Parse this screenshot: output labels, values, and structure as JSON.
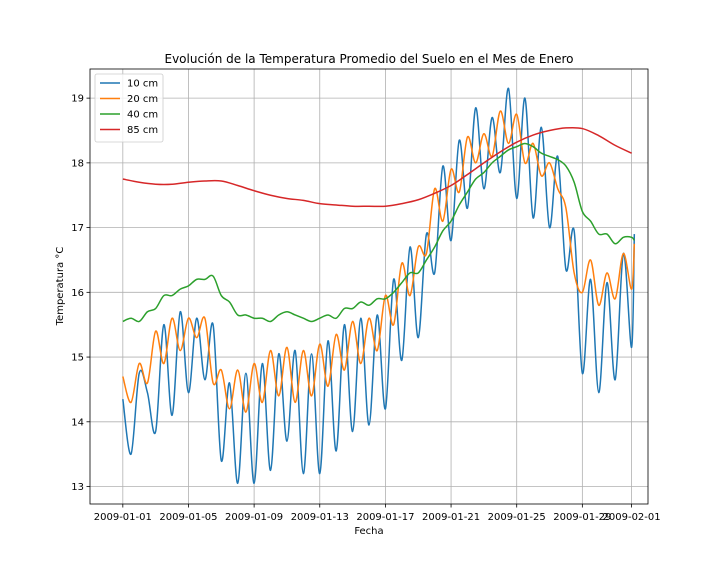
{
  "chart_data": {
    "type": "line",
    "title": "Evolución de la Temperatura Promedio del Suelo en el Mes de Enero",
    "xlabel": "Fecha",
    "ylabel": "Temperatura °C",
    "x_type": "date",
    "xlim": [
      "2008-12-30",
      "2009-02-02"
    ],
    "ylim": [
      12.73,
      19.45
    ],
    "xticks": [
      "2009-01-01",
      "2009-01-05",
      "2009-01-09",
      "2009-01-13",
      "2009-01-17",
      "2009-01-21",
      "2009-01-25",
      "2009-01-29",
      "2009-02-01"
    ],
    "yticks": [
      13,
      14,
      15,
      16,
      17,
      18,
      19
    ],
    "grid": true,
    "legend_position": "top-left",
    "series": [
      {
        "name": "10 cm",
        "color": "#1f77b4",
        "points": [
          [
            "2009-01-01",
            14.35
          ],
          [
            "2009-01-01T12:00",
            13.5
          ],
          [
            "2009-01-02",
            14.75
          ],
          [
            "2009-01-02T12:00",
            14.45
          ],
          [
            "2009-01-03",
            13.85
          ],
          [
            "2009-01-03T12:00",
            15.5
          ],
          [
            "2009-01-04",
            14.1
          ],
          [
            "2009-01-04T12:00",
            15.7
          ],
          [
            "2009-01-05",
            14.45
          ],
          [
            "2009-01-05T12:00",
            15.6
          ],
          [
            "2009-01-06",
            14.65
          ],
          [
            "2009-01-06T12:00",
            15.5
          ],
          [
            "2009-01-07",
            13.4
          ],
          [
            "2009-01-07T12:00",
            14.6
          ],
          [
            "2009-01-08",
            13.05
          ],
          [
            "2009-01-08T12:00",
            14.75
          ],
          [
            "2009-01-09",
            13.05
          ],
          [
            "2009-01-09T12:00",
            14.9
          ],
          [
            "2009-01-10",
            13.25
          ],
          [
            "2009-01-10T12:00",
            15.05
          ],
          [
            "2009-01-11",
            13.7
          ],
          [
            "2009-01-11T12:00",
            15.1
          ],
          [
            "2009-01-12",
            13.2
          ],
          [
            "2009-01-12T12:00",
            15.05
          ],
          [
            "2009-01-13",
            13.2
          ],
          [
            "2009-01-13T12:00",
            15.25
          ],
          [
            "2009-01-14",
            13.55
          ],
          [
            "2009-01-14T12:00",
            15.5
          ],
          [
            "2009-01-15",
            13.85
          ],
          [
            "2009-01-15T12:00",
            15.6
          ],
          [
            "2009-01-16",
            13.95
          ],
          [
            "2009-01-16T12:00",
            15.65
          ],
          [
            "2009-01-17",
            14.2
          ],
          [
            "2009-01-17T12:00",
            16.2
          ],
          [
            "2009-01-18",
            14.95
          ],
          [
            "2009-01-18T12:00",
            16.7
          ],
          [
            "2009-01-19",
            15.3
          ],
          [
            "2009-01-19T12:00",
            16.9
          ],
          [
            "2009-01-20",
            16.3
          ],
          [
            "2009-01-20T12:00",
            17.95
          ],
          [
            "2009-01-21",
            16.8
          ],
          [
            "2009-01-21T12:00",
            18.35
          ],
          [
            "2009-01-22",
            17.3
          ],
          [
            "2009-01-22T12:00",
            18.85
          ],
          [
            "2009-01-23",
            17.6
          ],
          [
            "2009-01-23T12:00",
            18.7
          ],
          [
            "2009-01-24",
            17.85
          ],
          [
            "2009-01-24T12:00",
            19.15
          ],
          [
            "2009-01-25",
            17.45
          ],
          [
            "2009-01-25T12:00",
            19.0
          ],
          [
            "2009-01-26",
            17.15
          ],
          [
            "2009-01-26T12:00",
            18.55
          ],
          [
            "2009-01-27",
            17.0
          ],
          [
            "2009-01-27T12:00",
            18.1
          ],
          [
            "2009-01-28",
            16.35
          ],
          [
            "2009-01-28T12:00",
            16.95
          ],
          [
            "2009-01-29",
            14.75
          ],
          [
            "2009-01-29T12:00",
            16.2
          ],
          [
            "2009-01-30",
            14.45
          ],
          [
            "2009-01-30T12:00",
            16.15
          ],
          [
            "2009-01-31",
            14.65
          ],
          [
            "2009-01-31T12:00",
            16.6
          ],
          [
            "2009-02-01",
            15.15
          ],
          [
            "2009-02-01T04:00",
            16.9
          ]
        ]
      },
      {
        "name": "20 cm",
        "color": "#ff7f0e",
        "points": [
          [
            "2009-01-01",
            14.7
          ],
          [
            "2009-01-01T12:00",
            14.3
          ],
          [
            "2009-01-02",
            14.9
          ],
          [
            "2009-01-02T12:00",
            14.6
          ],
          [
            "2009-01-03",
            15.4
          ],
          [
            "2009-01-03T12:00",
            14.9
          ],
          [
            "2009-01-04",
            15.6
          ],
          [
            "2009-01-04T12:00",
            15.1
          ],
          [
            "2009-01-05",
            15.6
          ],
          [
            "2009-01-05T12:00",
            15.3
          ],
          [
            "2009-01-06",
            15.6
          ],
          [
            "2009-01-06T12:00",
            14.6
          ],
          [
            "2009-01-07",
            14.8
          ],
          [
            "2009-01-07T12:00",
            14.2
          ],
          [
            "2009-01-08",
            14.8
          ],
          [
            "2009-01-08T12:00",
            14.15
          ],
          [
            "2009-01-09",
            14.9
          ],
          [
            "2009-01-09T12:00",
            14.3
          ],
          [
            "2009-01-10",
            15.1
          ],
          [
            "2009-01-10T12:00",
            14.4
          ],
          [
            "2009-01-11",
            15.15
          ],
          [
            "2009-01-11T12:00",
            14.3
          ],
          [
            "2009-01-12",
            15.1
          ],
          [
            "2009-01-12T12:00",
            14.4
          ],
          [
            "2009-01-13",
            15.2
          ],
          [
            "2009-01-13T12:00",
            14.55
          ],
          [
            "2009-01-14",
            15.35
          ],
          [
            "2009-01-14T12:00",
            14.8
          ],
          [
            "2009-01-15",
            15.55
          ],
          [
            "2009-01-15T12:00",
            14.9
          ],
          [
            "2009-01-16",
            15.6
          ],
          [
            "2009-01-16T12:00",
            15.1
          ],
          [
            "2009-01-17",
            15.95
          ],
          [
            "2009-01-17T12:00",
            15.5
          ],
          [
            "2009-01-18",
            16.45
          ],
          [
            "2009-01-18T12:00",
            15.95
          ],
          [
            "2009-01-19",
            16.7
          ],
          [
            "2009-01-19T12:00",
            16.6
          ],
          [
            "2009-01-20",
            17.6
          ],
          [
            "2009-01-20T12:00",
            17.1
          ],
          [
            "2009-01-21",
            17.9
          ],
          [
            "2009-01-21T12:00",
            17.55
          ],
          [
            "2009-01-22",
            18.4
          ],
          [
            "2009-01-22T12:00",
            18.0
          ],
          [
            "2009-01-23",
            18.45
          ],
          [
            "2009-01-23T12:00",
            18.1
          ],
          [
            "2009-01-24",
            18.8
          ],
          [
            "2009-01-24T12:00",
            18.3
          ],
          [
            "2009-01-25",
            18.75
          ],
          [
            "2009-01-25T12:00",
            18.0
          ],
          [
            "2009-01-26",
            18.3
          ],
          [
            "2009-01-26T12:00",
            17.8
          ],
          [
            "2009-01-27",
            18.0
          ],
          [
            "2009-01-27T12:00",
            17.6
          ],
          [
            "2009-01-28",
            17.3
          ],
          [
            "2009-01-28T12:00",
            16.3
          ],
          [
            "2009-01-29",
            16.0
          ],
          [
            "2009-01-29T12:00",
            16.5
          ],
          [
            "2009-01-30",
            15.8
          ],
          [
            "2009-01-30T12:00",
            16.3
          ],
          [
            "2009-01-31",
            15.9
          ],
          [
            "2009-01-31T12:00",
            16.6
          ],
          [
            "2009-02-01",
            16.05
          ],
          [
            "2009-02-01T04:00",
            16.75
          ]
        ]
      },
      {
        "name": "40 cm",
        "color": "#2ca02c",
        "points": [
          [
            "2009-01-01",
            15.55
          ],
          [
            "2009-01-01T12:00",
            15.6
          ],
          [
            "2009-01-02",
            15.55
          ],
          [
            "2009-01-02T12:00",
            15.7
          ],
          [
            "2009-01-03",
            15.75
          ],
          [
            "2009-01-03T12:00",
            15.95
          ],
          [
            "2009-01-04",
            15.95
          ],
          [
            "2009-01-04T12:00",
            16.05
          ],
          [
            "2009-01-05",
            16.1
          ],
          [
            "2009-01-05T12:00",
            16.2
          ],
          [
            "2009-01-06",
            16.2
          ],
          [
            "2009-01-06T12:00",
            16.25
          ],
          [
            "2009-01-07",
            15.95
          ],
          [
            "2009-01-07T12:00",
            15.85
          ],
          [
            "2009-01-08",
            15.65
          ],
          [
            "2009-01-08T12:00",
            15.65
          ],
          [
            "2009-01-09",
            15.6
          ],
          [
            "2009-01-09T12:00",
            15.6
          ],
          [
            "2009-01-10",
            15.55
          ],
          [
            "2009-01-10T12:00",
            15.65
          ],
          [
            "2009-01-11",
            15.7
          ],
          [
            "2009-01-11T12:00",
            15.65
          ],
          [
            "2009-01-12",
            15.6
          ],
          [
            "2009-01-12T12:00",
            15.55
          ],
          [
            "2009-01-13",
            15.6
          ],
          [
            "2009-01-13T12:00",
            15.65
          ],
          [
            "2009-01-14",
            15.6
          ],
          [
            "2009-01-14T12:00",
            15.75
          ],
          [
            "2009-01-15",
            15.75
          ],
          [
            "2009-01-15T12:00",
            15.85
          ],
          [
            "2009-01-16",
            15.8
          ],
          [
            "2009-01-16T12:00",
            15.9
          ],
          [
            "2009-01-17",
            15.9
          ],
          [
            "2009-01-17T12:00",
            16.0
          ],
          [
            "2009-01-18",
            16.15
          ],
          [
            "2009-01-18T12:00",
            16.3
          ],
          [
            "2009-01-19",
            16.3
          ],
          [
            "2009-01-19T12:00",
            16.5
          ],
          [
            "2009-01-20",
            16.7
          ],
          [
            "2009-01-20T12:00",
            16.95
          ],
          [
            "2009-01-21",
            17.1
          ],
          [
            "2009-01-21T12:00",
            17.35
          ],
          [
            "2009-01-22",
            17.55
          ],
          [
            "2009-01-22T12:00",
            17.75
          ],
          [
            "2009-01-23",
            17.85
          ],
          [
            "2009-01-23T12:00",
            18.0
          ],
          [
            "2009-01-24",
            18.1
          ],
          [
            "2009-01-24T12:00",
            18.2
          ],
          [
            "2009-01-25",
            18.25
          ],
          [
            "2009-01-25T12:00",
            18.3
          ],
          [
            "2009-01-26",
            18.25
          ],
          [
            "2009-01-26T12:00",
            18.15
          ],
          [
            "2009-01-27",
            18.1
          ],
          [
            "2009-01-27T12:00",
            18.05
          ],
          [
            "2009-01-28",
            17.95
          ],
          [
            "2009-01-28T12:00",
            17.7
          ],
          [
            "2009-01-29",
            17.25
          ],
          [
            "2009-01-29T12:00",
            17.1
          ],
          [
            "2009-01-30",
            16.9
          ],
          [
            "2009-01-30T12:00",
            16.9
          ],
          [
            "2009-01-31",
            16.75
          ],
          [
            "2009-01-31T12:00",
            16.85
          ],
          [
            "2009-02-01",
            16.85
          ],
          [
            "2009-02-01T04:00",
            16.8
          ]
        ]
      },
      {
        "name": "85 cm",
        "color": "#d62728",
        "points": [
          [
            "2009-01-01",
            17.75
          ],
          [
            "2009-01-02",
            17.7
          ],
          [
            "2009-01-03",
            17.67
          ],
          [
            "2009-01-04",
            17.67
          ],
          [
            "2009-01-05",
            17.7
          ],
          [
            "2009-01-06",
            17.72
          ],
          [
            "2009-01-07",
            17.72
          ],
          [
            "2009-01-08",
            17.65
          ],
          [
            "2009-01-09",
            17.57
          ],
          [
            "2009-01-10",
            17.5
          ],
          [
            "2009-01-11",
            17.45
          ],
          [
            "2009-01-12",
            17.42
          ],
          [
            "2009-01-13",
            17.37
          ],
          [
            "2009-01-14",
            17.35
          ],
          [
            "2009-01-15",
            17.33
          ],
          [
            "2009-01-16",
            17.33
          ],
          [
            "2009-01-17",
            17.33
          ],
          [
            "2009-01-18",
            17.37
          ],
          [
            "2009-01-19",
            17.43
          ],
          [
            "2009-01-20",
            17.53
          ],
          [
            "2009-01-21",
            17.65
          ],
          [
            "2009-01-22",
            17.82
          ],
          [
            "2009-01-23",
            18.0
          ],
          [
            "2009-01-24",
            18.17
          ],
          [
            "2009-01-25",
            18.32
          ],
          [
            "2009-01-26",
            18.43
          ],
          [
            "2009-01-27",
            18.5
          ],
          [
            "2009-01-28",
            18.54
          ],
          [
            "2009-01-29",
            18.53
          ],
          [
            "2009-01-30",
            18.42
          ],
          [
            "2009-01-31",
            18.27
          ],
          [
            "2009-02-01",
            18.15
          ]
        ]
      }
    ]
  }
}
